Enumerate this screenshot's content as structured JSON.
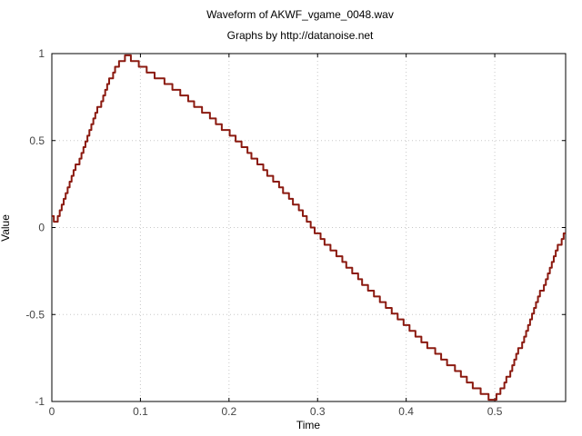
{
  "chart_data": {
    "type": "line",
    "title": "Waveform of AKWF_vgame_0048.wav",
    "subtitle": "Graphs by http://datanoise.net",
    "xlabel": "Time",
    "ylabel": "Value",
    "xlim": [
      0,
      0.58
    ],
    "ylim": [
      -1,
      1
    ],
    "xticks": [
      0,
      0.1,
      0.2,
      0.3,
      0.4,
      0.5
    ],
    "xtick_labels": [
      "0",
      "0.1",
      "0.2",
      "0.3",
      "0.4",
      "0.5"
    ],
    "yticks": [
      -1,
      -0.5,
      0,
      0.5,
      1
    ],
    "ytick_labels": [
      "-1",
      "-0.5",
      "0",
      "0.5",
      "1"
    ],
    "grid": true,
    "line_color": "#8b1a10",
    "series": [
      {
        "x": [
          0,
          0.005,
          0.01,
          0.02,
          0.03,
          0.04,
          0.05,
          0.06,
          0.07,
          0.08,
          0.085,
          0.09,
          0.1,
          0.12,
          0.14,
          0.16,
          0.18,
          0.2,
          0.22,
          0.24,
          0.26,
          0.28,
          0.3,
          0.32,
          0.34,
          0.36,
          0.38,
          0.4,
          0.42,
          0.44,
          0.46,
          0.48,
          0.495,
          0.5,
          0.51,
          0.52,
          0.53,
          0.54,
          0.55,
          0.56,
          0.57,
          0.58
        ],
        "y": [
          0.05,
          0.04,
          0.12,
          0.26,
          0.39,
          0.52,
          0.66,
          0.79,
          0.9,
          0.97,
          0.98,
          0.97,
          0.93,
          0.86,
          0.79,
          0.71,
          0.63,
          0.54,
          0.44,
          0.33,
          0.22,
          0.1,
          -0.04,
          -0.15,
          -0.26,
          -0.37,
          -0.47,
          -0.57,
          -0.66,
          -0.75,
          -0.84,
          -0.93,
          -0.99,
          -0.98,
          -0.9,
          -0.79,
          -0.66,
          -0.52,
          -0.39,
          -0.26,
          -0.12,
          -0.02
        ]
      }
    ]
  }
}
